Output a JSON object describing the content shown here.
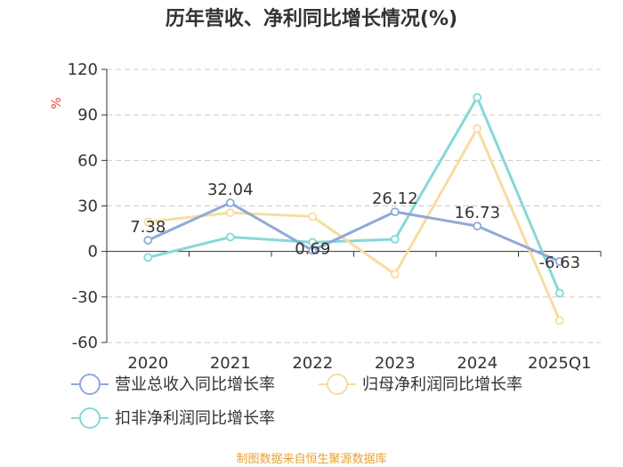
{
  "chart_data": {
    "type": "line",
    "title": "历年营收、净利同比增长情况(%)",
    "ylabel": "%",
    "xlabel": "",
    "categories": [
      "2020",
      "2021",
      "2022",
      "2023",
      "2024",
      "2025Q1"
    ],
    "ylim": [
      -60,
      120
    ],
    "yticks": [
      -60,
      -30,
      0,
      30,
      60,
      90,
      120
    ],
    "grid": true,
    "legend_position": "bottom",
    "series": [
      {
        "name": "营业总收入同比增长率",
        "color": "#8fa9d8",
        "values": [
          7.38,
          32.04,
          0.69,
          26.12,
          16.73,
          -6.63
        ],
        "labels": [
          "7.38",
          "32.04",
          "0.69",
          "26.12",
          "16.73",
          "-6.63"
        ]
      },
      {
        "name": "归母净利润同比增长率",
        "color": "#f8dca0",
        "values": [
          19.5,
          25.5,
          23.0,
          -15.0,
          81.0,
          -45.5
        ]
      },
      {
        "name": "扣非净利润同比增长率",
        "color": "#86d8d8",
        "values": [
          -4.0,
          9.5,
          6.0,
          8.0,
          101.5,
          -27.5
        ]
      }
    ],
    "source": "制图数据来自恒生聚源数据库"
  }
}
